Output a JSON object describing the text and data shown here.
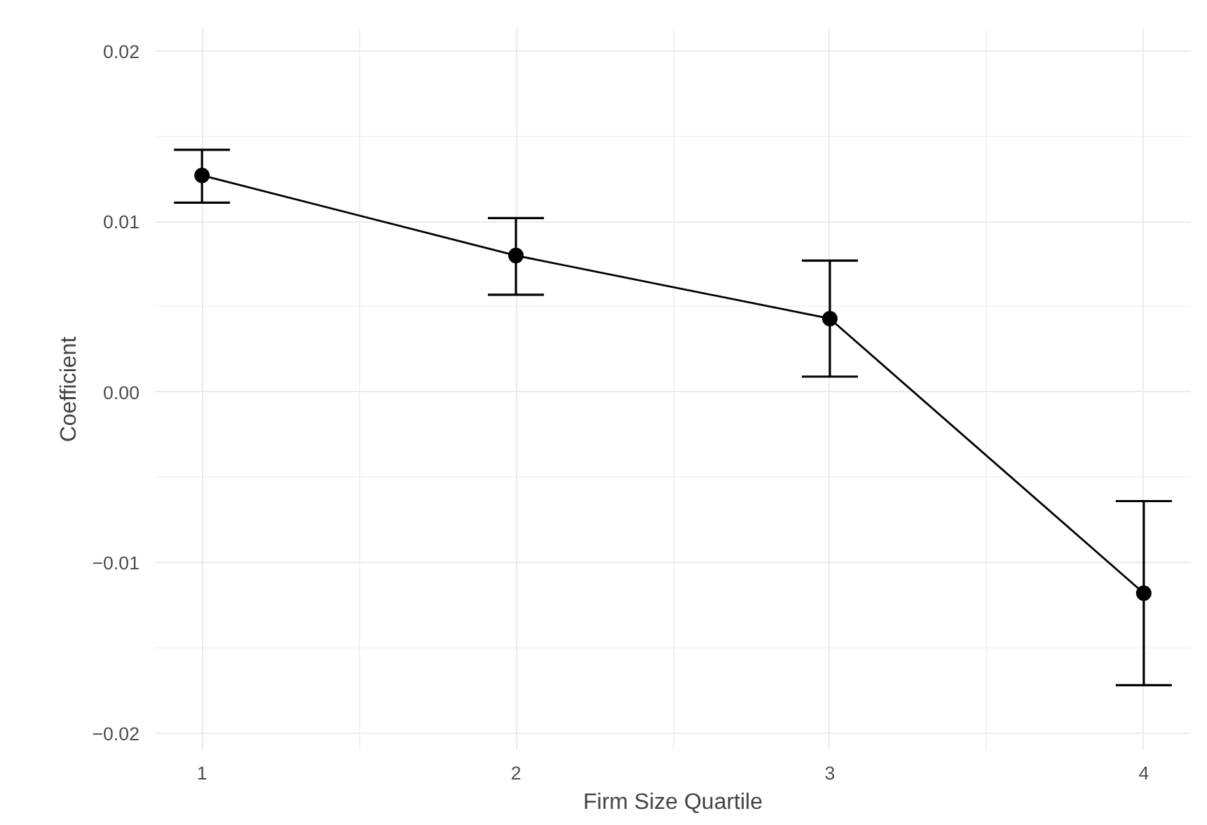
{
  "chart_data": {
    "type": "line",
    "xlabel": "Firm Size Quartile",
    "ylabel": "Coefficient",
    "categories": [
      "1",
      "2",
      "3",
      "4"
    ],
    "color": "#000000",
    "values": [
      0.0127,
      0.008,
      0.0043,
      -0.0118
    ],
    "errors": [
      [
        0.0111,
        0.0142
      ],
      [
        0.0057,
        0.0102
      ],
      [
        0.0009,
        0.0077
      ],
      [
        -0.0172,
        -0.0064
      ]
    ],
    "ylim": [
      -0.021,
      0.0213
    ],
    "yticks": [
      {
        "value": -0.02,
        "label": "−0.02"
      },
      {
        "value": -0.01,
        "label": "−0.01"
      },
      {
        "value": 0,
        "label": "0.00"
      },
      0.01,
      0.02
    ],
    "grid": true,
    "marker": "circle",
    "line_style": "solid"
  }
}
